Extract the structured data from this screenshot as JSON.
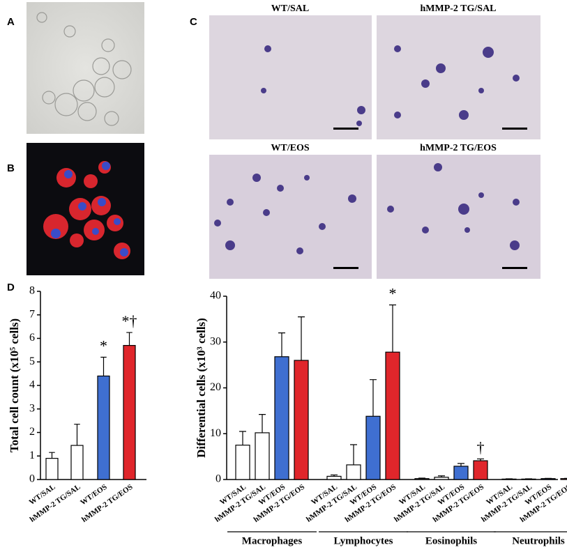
{
  "panels": {
    "a": "A",
    "b": "B",
    "c": "C",
    "d": "D"
  },
  "micrographs": [
    "WT/SAL",
    "hMMP-2 TG/SAL",
    "WT/EOS",
    "hMMP-2 TG/EOS"
  ],
  "chart_data": [
    {
      "type": "bar",
      "ylabel": "Total cell count  (x10⁵ cells)",
      "categories": [
        "WT/SAL",
        "hMMP-2 TG/SAL",
        "WT/EOS",
        "hMMP-2 TG/EOS"
      ],
      "values": [
        0.9,
        1.45,
        4.4,
        5.7
      ],
      "errors": [
        0.25,
        0.9,
        0.8,
        0.55
      ],
      "colors": [
        "#ffffff",
        "#ffffff",
        "#3f6fd1",
        "#e0262b"
      ],
      "value_markers": [
        null,
        null,
        "*",
        "*†"
      ],
      "ylim": [
        0,
        8
      ],
      "yticks": [
        0,
        1,
        2,
        3,
        4,
        5,
        6,
        7,
        8
      ]
    },
    {
      "type": "grouped_bar",
      "ylabel": "Differential cells  (x10³ cells)",
      "categories": [
        "Macrophages",
        "Lymphocytes",
        "Eosinophils",
        "Neutrophils"
      ],
      "series": [
        {
          "name": "WT/SAL",
          "color": "#ffffff",
          "values": [
            7.5,
            0.7,
            0.2,
            0.1
          ],
          "errors": [
            3,
            0.3,
            0.1,
            0.05
          ],
          "value_markers": [
            null,
            null,
            null,
            null
          ]
        },
        {
          "name": "hMMP-2 TG/SAL",
          "color": "#ffffff",
          "values": [
            10.2,
            3.2,
            0.5,
            0.1
          ],
          "errors": [
            4,
            4.4,
            0.3,
            0.05
          ],
          "value_markers": [
            null,
            null,
            null,
            null
          ]
        },
        {
          "name": "WT/EOS",
          "color": "#3f6fd1",
          "values": [
            26.8,
            13.8,
            2.9,
            0.2
          ],
          "errors": [
            5.2,
            8,
            0.6,
            0.05
          ],
          "value_markers": [
            null,
            null,
            null,
            null
          ]
        },
        {
          "name": "hMMP-2 TG/EOS",
          "color": "#e0262b",
          "values": [
            26,
            27.8,
            4.1,
            0.2
          ],
          "errors": [
            9.5,
            10.3,
            0.4,
            0.05
          ],
          "value_markers": [
            null,
            "*",
            "†",
            null
          ]
        }
      ],
      "ylim": [
        0,
        40
      ],
      "yticks": [
        0,
        10,
        20,
        30,
        40
      ]
    }
  ]
}
